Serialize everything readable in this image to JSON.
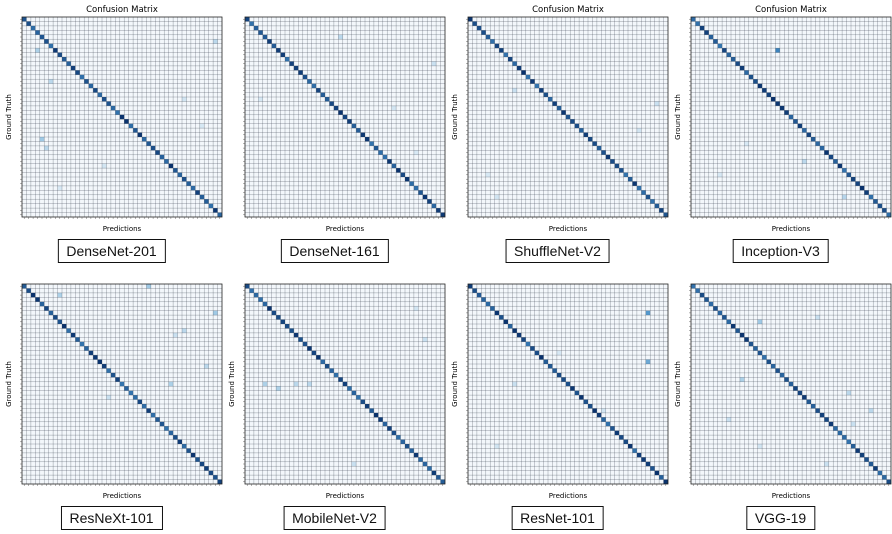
{
  "chart_data": [
    {
      "type": "heatmap",
      "title": "Confusion Matrix",
      "xlabel": "Predictions",
      "ylabel": "Ground Truth",
      "caption": "DenseNet-201",
      "n_classes": 45,
      "grid": true,
      "colormap": "Blues",
      "off_diagonal": [
        [
          7,
          3,
          0.25
        ],
        [
          14,
          6,
          0.2
        ],
        [
          27,
          4,
          0.3
        ],
        [
          29,
          5,
          0.2
        ],
        [
          5,
          43,
          0.2
        ],
        [
          33,
          18,
          0.12
        ],
        [
          24,
          40,
          0.1
        ],
        [
          18,
          36,
          0.12
        ],
        [
          38,
          8,
          0.1
        ]
      ]
    },
    {
      "type": "heatmap",
      "title": "",
      "xlabel": "Predictions",
      "ylabel": "",
      "caption": "DenseNet-161",
      "n_classes": 45,
      "grid": true,
      "colormap": "Blues",
      "off_diagonal": [
        [
          4,
          21,
          0.2
        ],
        [
          20,
          33,
          0.12
        ],
        [
          18,
          3,
          0.1
        ],
        [
          30,
          38,
          0.1
        ],
        [
          10,
          42,
          0.15
        ]
      ]
    },
    {
      "type": "heatmap",
      "title": "Confusion Matrix",
      "xlabel": "Predictions",
      "ylabel": "Ground Truth",
      "caption": "ShuffleNet-V2",
      "n_classes": 45,
      "grid": true,
      "colormap": "Blues",
      "off_diagonal": [
        [
          16,
          10,
          0.15
        ],
        [
          25,
          38,
          0.12
        ],
        [
          35,
          4,
          0.1
        ],
        [
          19,
          42,
          0.15
        ],
        [
          40,
          6,
          0.12
        ]
      ]
    },
    {
      "type": "heatmap",
      "title": "Confusion Matrix",
      "xlabel": "Predictions",
      "ylabel": "Ground Truth",
      "caption": "Inception-V3",
      "n_classes": 45,
      "grid": true,
      "colormap": "Blues",
      "off_diagonal": [
        [
          7,
          19,
          0.7
        ],
        [
          32,
          25,
          0.2
        ],
        [
          40,
          34,
          0.22
        ],
        [
          35,
          6,
          0.1
        ],
        [
          28,
          12,
          0.1
        ]
      ]
    },
    {
      "type": "heatmap",
      "title": "",
      "xlabel": "Predictions",
      "ylabel": "Ground Truth",
      "caption": "ResNeXt-101",
      "n_classes": 45,
      "grid": true,
      "colormap": "Blues",
      "off_diagonal": [
        [
          2,
          8,
          0.25
        ],
        [
          0,
          28,
          0.3
        ],
        [
          6,
          43,
          0.3
        ],
        [
          22,
          33,
          0.25
        ],
        [
          10,
          36,
          0.2
        ],
        [
          25,
          19,
          0.15
        ],
        [
          18,
          41,
          0.2
        ],
        [
          11,
          34,
          0.15
        ]
      ]
    },
    {
      "type": "heatmap",
      "title": "",
      "xlabel": "Predictions",
      "ylabel": "Ground Truth",
      "caption": "MobileNet-V2",
      "n_classes": 45,
      "grid": true,
      "colormap": "Blues",
      "off_diagonal": [
        [
          22,
          4,
          0.25
        ],
        [
          23,
          7,
          0.25
        ],
        [
          22,
          11,
          0.2
        ],
        [
          22,
          14,
          0.2
        ],
        [
          40,
          24,
          0.15
        ],
        [
          12,
          40,
          0.15
        ],
        [
          5,
          38,
          0.12
        ]
      ]
    },
    {
      "type": "heatmap",
      "title": "",
      "xlabel": "Predictions",
      "ylabel": "Ground Truth",
      "caption": "ResNet-101",
      "n_classes": 45,
      "grid": true,
      "colormap": "Blues",
      "off_diagonal": [
        [
          6,
          40,
          0.6
        ],
        [
          17,
          40,
          0.5
        ],
        [
          22,
          10,
          0.15
        ],
        [
          28,
          30,
          0.12
        ],
        [
          15,
          20,
          0.1
        ],
        [
          36,
          6,
          0.12
        ]
      ]
    },
    {
      "type": "heatmap",
      "title": "",
      "xlabel": "Predictions",
      "ylabel": "Ground Truth",
      "caption": "VGG-19",
      "n_classes": 45,
      "grid": true,
      "colormap": "Blues",
      "off_diagonal": [
        [
          8,
          15,
          0.3
        ],
        [
          21,
          11,
          0.25
        ],
        [
          24,
          35,
          0.2
        ],
        [
          7,
          28,
          0.15
        ],
        [
          28,
          40,
          0.2
        ],
        [
          31,
          36,
          0.15
        ],
        [
          30,
          8,
          0.15
        ],
        [
          40,
          30,
          0.15
        ],
        [
          36,
          15,
          0.12
        ]
      ]
    }
  ]
}
